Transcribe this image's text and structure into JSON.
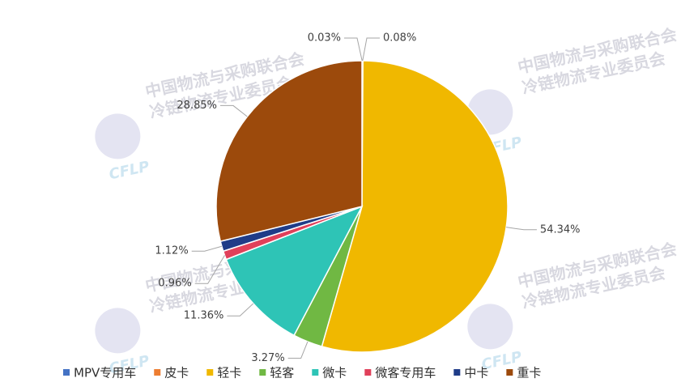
{
  "chart_data": {
    "type": "pie",
    "categories": [
      "MPV专用车",
      "皮卡",
      "轻卡",
      "轻客",
      "微卡",
      "微客专用车",
      "中卡",
      "重卡"
    ],
    "values": [
      0.03,
      0.08,
      54.34,
      3.27,
      11.36,
      0.96,
      1.12,
      28.85
    ],
    "value_labels": [
      "0.03%",
      "0.08%",
      "54.34%",
      "3.27%",
      "11.36%",
      "0.96%",
      "1.12%",
      "28.85%"
    ],
    "colors": [
      "#4472c4",
      "#ed7d31",
      "#f0b800",
      "#70b843",
      "#2ec4b6",
      "#e0405a",
      "#1f3c88",
      "#9c4a0c"
    ],
    "legend": "bottom"
  },
  "watermark": {
    "line1": "中国物流与采购联合会",
    "line2": "冷链物流专业委员会",
    "logo": "CFLP"
  }
}
